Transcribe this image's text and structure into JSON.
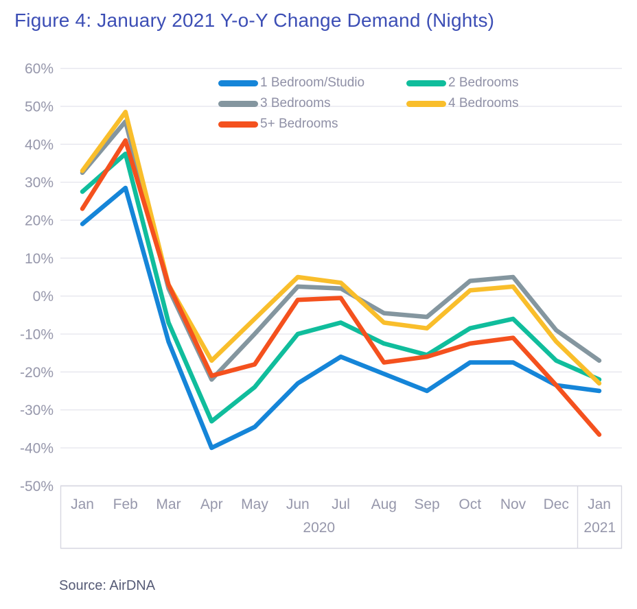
{
  "title": "Figure 4: January 2021 Y-o-Y Change Demand (Nights)",
  "source": "Source: AirDNA",
  "colors": {
    "title_text": "#3C4EB5",
    "axis_text": "#9697AB",
    "legend_text": "#8F90A6",
    "source_text": "#565B76",
    "gridline": "#E6E6EE",
    "axis_table_border": "#D6D6E0"
  },
  "chart_data": {
    "type": "line",
    "title": "Figure 4: January 2021 Y-o-Y Change Demand (Nights)",
    "x": [
      "Jan",
      "Feb",
      "Mar",
      "Apr",
      "May",
      "Jun",
      "Jul",
      "Aug",
      "Sep",
      "Oct",
      "Nov",
      "Dec",
      "Jan"
    ],
    "x_group_labels": [
      "2020",
      "2021"
    ],
    "y_ticks": [
      "60%",
      "50%",
      "40%",
      "30%",
      "20%",
      "10%",
      "0%",
      "-10%",
      "-20%",
      "-30%",
      "-40%",
      "-50%"
    ],
    "y_tick_values": [
      60,
      50,
      40,
      30,
      20,
      10,
      0,
      -10,
      -20,
      -30,
      -40,
      -50
    ],
    "ylim": [
      -50,
      60
    ],
    "ylabel": "",
    "xlabel": "",
    "grid": true,
    "legend_position": "top-center",
    "series": [
      {
        "name": "1 Bedroom/Studio",
        "color": "#1585D8",
        "values": [
          19,
          28.5,
          -12,
          -40,
          -34.5,
          -23,
          -16,
          -20.5,
          -25,
          -17.5,
          -17.5,
          -23.5,
          -25
        ]
      },
      {
        "name": "2 Bedrooms",
        "color": "#10BD9C",
        "values": [
          27.5,
          37.5,
          -7,
          -33,
          -24,
          -10,
          -7,
          -12.5,
          -15.5,
          -8.5,
          -6,
          -17,
          -22
        ]
      },
      {
        "name": "3 Bedrooms",
        "color": "#84969F",
        "values": [
          32.5,
          46,
          2,
          -22,
          -10,
          2.5,
          2,
          -4.5,
          -5.5,
          4,
          5,
          -9,
          -17
        ]
      },
      {
        "name": "4 Bedrooms",
        "color": "#F9BE2B",
        "values": [
          33,
          48.5,
          3,
          -17,
          -6,
          5,
          3.5,
          -7,
          -8.5,
          1.5,
          2.5,
          -12,
          -23
        ]
      },
      {
        "name": "5+ Bedrooms",
        "color": "#F4511E",
        "values": [
          23,
          41,
          3,
          -21,
          -18,
          -1,
          -0.5,
          -17.5,
          -16,
          -12.5,
          -11,
          -23.5,
          -36.5
        ]
      }
    ]
  }
}
